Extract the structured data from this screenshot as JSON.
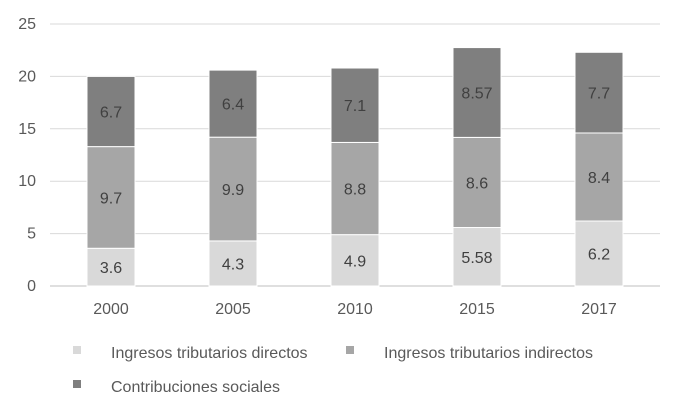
{
  "chart_data": {
    "type": "bar",
    "stacked": true,
    "categories": [
      "2000",
      "2005",
      "2010",
      "2015",
      "2017"
    ],
    "series": [
      {
        "name": "Ingresos tributarios directos",
        "values": [
          3.6,
          4.3,
          4.9,
          5.58,
          6.2
        ],
        "labels": [
          "3.6",
          "4.3",
          "4.9",
          "5.58",
          "6.2"
        ],
        "color": "#d9d9d9"
      },
      {
        "name": "Ingresos tributarios indirectos",
        "values": [
          9.7,
          9.9,
          8.8,
          8.6,
          8.4
        ],
        "labels": [
          "9.7",
          "9.9",
          "8.8",
          "8.6",
          "8.4"
        ],
        "color": "#a6a6a6"
      },
      {
        "name": "Contribuciones sociales",
        "values": [
          6.7,
          6.4,
          7.1,
          8.57,
          7.7
        ],
        "labels": [
          "6.7",
          "6.4",
          "7.1",
          "8.57",
          "7.7"
        ],
        "color": "#7f7f7f"
      }
    ],
    "y_ticks": [
      0,
      5,
      10,
      15,
      20,
      25
    ],
    "ylim": [
      0,
      25
    ],
    "grid": true,
    "legend_position": "bottom"
  }
}
